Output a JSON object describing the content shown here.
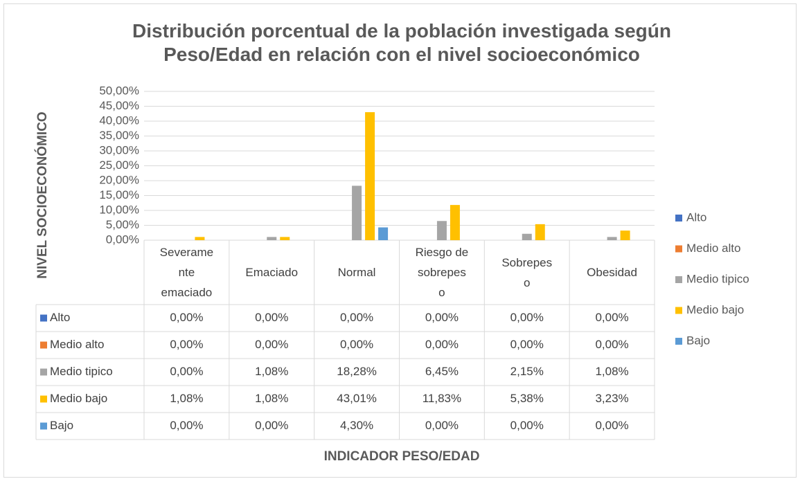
{
  "chart_data": {
    "type": "bar",
    "title": "Distribución porcentual de la población investigada según Peso/Edad en relación con el nivel socioeconómico",
    "y_label": "NIVEL SOCIOECONÓMICO",
    "x_label": "INDICADOR PESO/EDAD",
    "categories": [
      "Severamente emaciado",
      "Emaciado",
      "Normal",
      "Riesgo de sobrepeso",
      "Sobrepeso",
      "Obesidad"
    ],
    "series": [
      {
        "name": "Alto",
        "color": "#4472c4",
        "values": [
          0,
          0,
          0,
          0,
          0,
          0
        ],
        "value_labels": [
          "0,00%",
          "0,00%",
          "0,00%",
          "0,00%",
          "0,00%",
          "0,00%"
        ]
      },
      {
        "name": "Medio alto",
        "color": "#ed7d31",
        "values": [
          0,
          0,
          0,
          0,
          0,
          0
        ],
        "value_labels": [
          "0,00%",
          "0,00%",
          "0,00%",
          "0,00%",
          "0,00%",
          "0,00%"
        ]
      },
      {
        "name": "Medio tipico",
        "color": "#a5a5a5",
        "values": [
          0,
          1.08,
          18.28,
          6.45,
          2.15,
          1.08
        ],
        "value_labels": [
          "0,00%",
          "1,08%",
          "18,28%",
          "6,45%",
          "2,15%",
          "1,08%"
        ]
      },
      {
        "name": "Medio bajo",
        "color": "#ffc000",
        "values": [
          1.08,
          1.08,
          43.01,
          11.83,
          5.38,
          3.23
        ],
        "value_labels": [
          "1,08%",
          "1,08%",
          "43,01%",
          "11,83%",
          "5,38%",
          "3,23%"
        ]
      },
      {
        "name": "Bajo",
        "color": "#5b9bd5",
        "values": [
          0,
          0,
          4.3,
          0,
          0,
          0
        ],
        "value_labels": [
          "0,00%",
          "0,00%",
          "4,30%",
          "0,00%",
          "0,00%",
          "0,00%"
        ]
      }
    ],
    "ylim": [
      0,
      50
    ],
    "yticks": [
      {
        "value": 0,
        "label": "0,00%"
      },
      {
        "value": 5,
        "label": "5,00%"
      },
      {
        "value": 10,
        "label": "10,00%"
      },
      {
        "value": 15,
        "label": "15,00%"
      },
      {
        "value": 20,
        "label": "20,00%"
      },
      {
        "value": 25,
        "label": "25,00%"
      },
      {
        "value": 30,
        "label": "30,00%"
      },
      {
        "value": 35,
        "label": "35,00%"
      },
      {
        "value": 40,
        "label": "40,00%"
      },
      {
        "value": 45,
        "label": "45,00%"
      },
      {
        "value": 50,
        "label": "50,00%"
      }
    ],
    "grid": true,
    "legend": "right"
  }
}
